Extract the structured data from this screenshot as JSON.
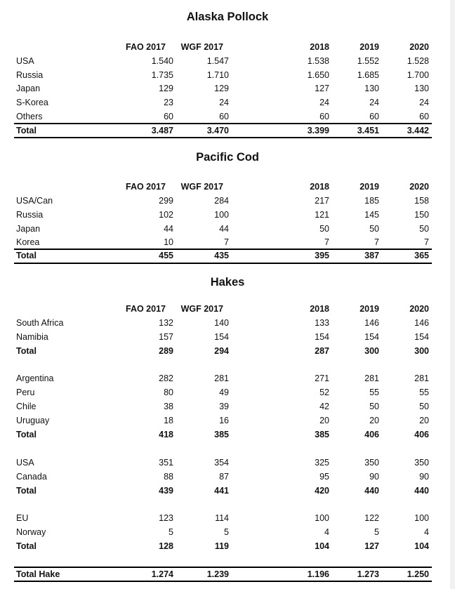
{
  "sections": [
    {
      "title": "Alaska Pollock",
      "columns": [
        "FAO 2017",
        "WGF 2017",
        "2018",
        "2019",
        "2020"
      ],
      "groups": [
        {
          "rows": [
            {
              "label": "USA",
              "values": [
                "1.540",
                "1.547",
                "1.538",
                "1.552",
                "1.528"
              ]
            },
            {
              "label": "Russia",
              "values": [
                "1.735",
                "1.710",
                "1.650",
                "1.685",
                "1.700"
              ]
            },
            {
              "label": "Japan",
              "values": [
                "129",
                "129",
                "127",
                "130",
                "130"
              ]
            },
            {
              "label": "S-Korea",
              "values": [
                "23",
                "24",
                "24",
                "24",
                "24"
              ]
            },
            {
              "label": "Others",
              "values": [
                "60",
                "60",
                "60",
                "60",
                "60"
              ]
            }
          ],
          "total": {
            "label": "Total",
            "values": [
              "3.487",
              "3.470",
              "3.399",
              "3.451",
              "3.442"
            ]
          }
        }
      ]
    },
    {
      "title": "Pacific Cod",
      "columns": [
        "FAO 2017",
        "WGF 2017",
        "2018",
        "2019",
        "2020"
      ],
      "groups": [
        {
          "rows": [
            {
              "label": "USA/Can",
              "values": [
                "299",
                "284",
                "217",
                "185",
                "158"
              ]
            },
            {
              "label": "Russia",
              "values": [
                "102",
                "100",
                "121",
                "145",
                "150"
              ]
            },
            {
              "label": "Japan",
              "values": [
                "44",
                "44",
                "50",
                "50",
                "50"
              ]
            },
            {
              "label": "Korea",
              "values": [
                "10",
                "7",
                "7",
                "7",
                "7"
              ]
            }
          ],
          "total": {
            "label": "Total",
            "values": [
              "455",
              "435",
              "395",
              "387",
              "365"
            ]
          }
        }
      ]
    },
    {
      "title": "Hakes",
      "columns": [
        "FAO 2017",
        "WGF 2017",
        "2018",
        "2019",
        "2020"
      ],
      "groups": [
        {
          "rows": [
            {
              "label": "South Africa",
              "values": [
                "132",
                "140",
                "133",
                "146",
                "146"
              ]
            },
            {
              "label": "Namibia",
              "values": [
                "157",
                "154",
                "154",
                "154",
                "154"
              ]
            }
          ],
          "total": {
            "label": "Total",
            "values": [
              "289",
              "294",
              "287",
              "300",
              "300"
            ]
          }
        },
        {
          "rows": [
            {
              "label": "Argentina",
              "values": [
                "282",
                "281",
                "271",
                "281",
                "281"
              ]
            },
            {
              "label": "Peru",
              "values": [
                "80",
                "49",
                "52",
                "55",
                "55"
              ]
            },
            {
              "label": "Chile",
              "values": [
                "38",
                "39",
                "42",
                "50",
                "50"
              ]
            },
            {
              "label": "Uruguay",
              "values": [
                "18",
                "16",
                "20",
                "20",
                "20"
              ]
            }
          ],
          "total": {
            "label": "Total",
            "values": [
              "418",
              "385",
              "385",
              "406",
              "406"
            ]
          }
        },
        {
          "rows": [
            {
              "label": "USA",
              "values": [
                "351",
                "354",
                "325",
                "350",
                "350"
              ]
            },
            {
              "label": "Canada",
              "values": [
                "88",
                "87",
                "95",
                "90",
                "90"
              ]
            }
          ],
          "total": {
            "label": "Total",
            "values": [
              "439",
              "441",
              "420",
              "440",
              "440"
            ]
          }
        },
        {
          "rows": [
            {
              "label": "EU",
              "values": [
                "123",
                "114",
                "100",
                "122",
                "100"
              ]
            },
            {
              "label": "Norway",
              "values": [
                "5",
                "5",
                "4",
                "5",
                "4"
              ]
            }
          ],
          "total": {
            "label": "Total",
            "values": [
              "128",
              "119",
              "104",
              "127",
              "104"
            ]
          }
        }
      ],
      "grand_total": {
        "label": "Total Hake",
        "values": [
          "1.274",
          "1.239",
          "1.196",
          "1.273",
          "1.250"
        ]
      }
    }
  ]
}
